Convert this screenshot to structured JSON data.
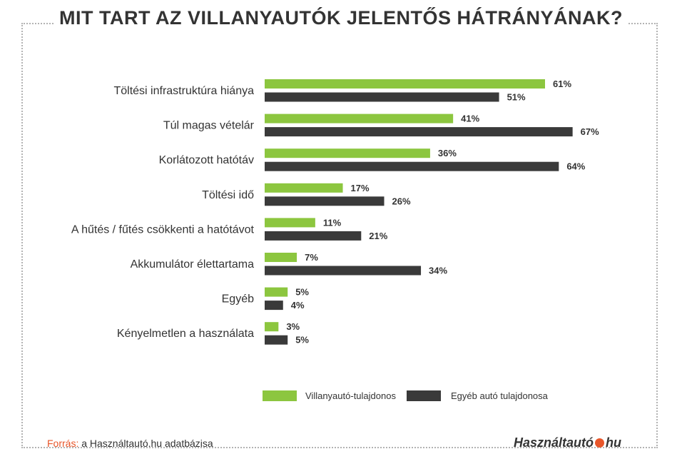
{
  "title": "MIT TART AZ VILLANYAUTÓK JELENTŐS HÁTRÁNYÁNAK?",
  "colors": {
    "series1": "#8cc63f",
    "series2": "#3a3a3a",
    "accent": "#e8562a"
  },
  "chart_data": {
    "type": "bar",
    "orientation": "horizontal",
    "title": "MIT TART AZ VILLANYAUTÓK JELENTŐS HÁTRÁNYÁNAK?",
    "categories": [
      "Töltési infrastruktúra hiánya",
      "Túl magas vételár",
      "Korlátozott hatótáv",
      "Töltési idő",
      "A hűtés / fűtés csökkenti a hatótávot",
      "Akkumulátor élettartama",
      "Egyéb",
      "Kényelmetlen a használata"
    ],
    "series": [
      {
        "name": "Villanyautó-tulajdonos",
        "values": [
          61,
          41,
          36,
          17,
          11,
          7,
          5,
          3
        ],
        "color": "#8cc63f"
      },
      {
        "name": "Egyéb autó tulajdonosa",
        "values": [
          51,
          67,
          64,
          26,
          21,
          34,
          4,
          5
        ],
        "color": "#3a3a3a"
      }
    ],
    "value_suffix": "%",
    "xlim": [
      0,
      100
    ],
    "grid": false,
    "legend_position": "bottom"
  },
  "footer": {
    "source_key": "Forrás:",
    "source_text": " a Használtautó.hu adatbázisa",
    "logo_left": "Használtautó",
    "logo_right": "hu"
  }
}
